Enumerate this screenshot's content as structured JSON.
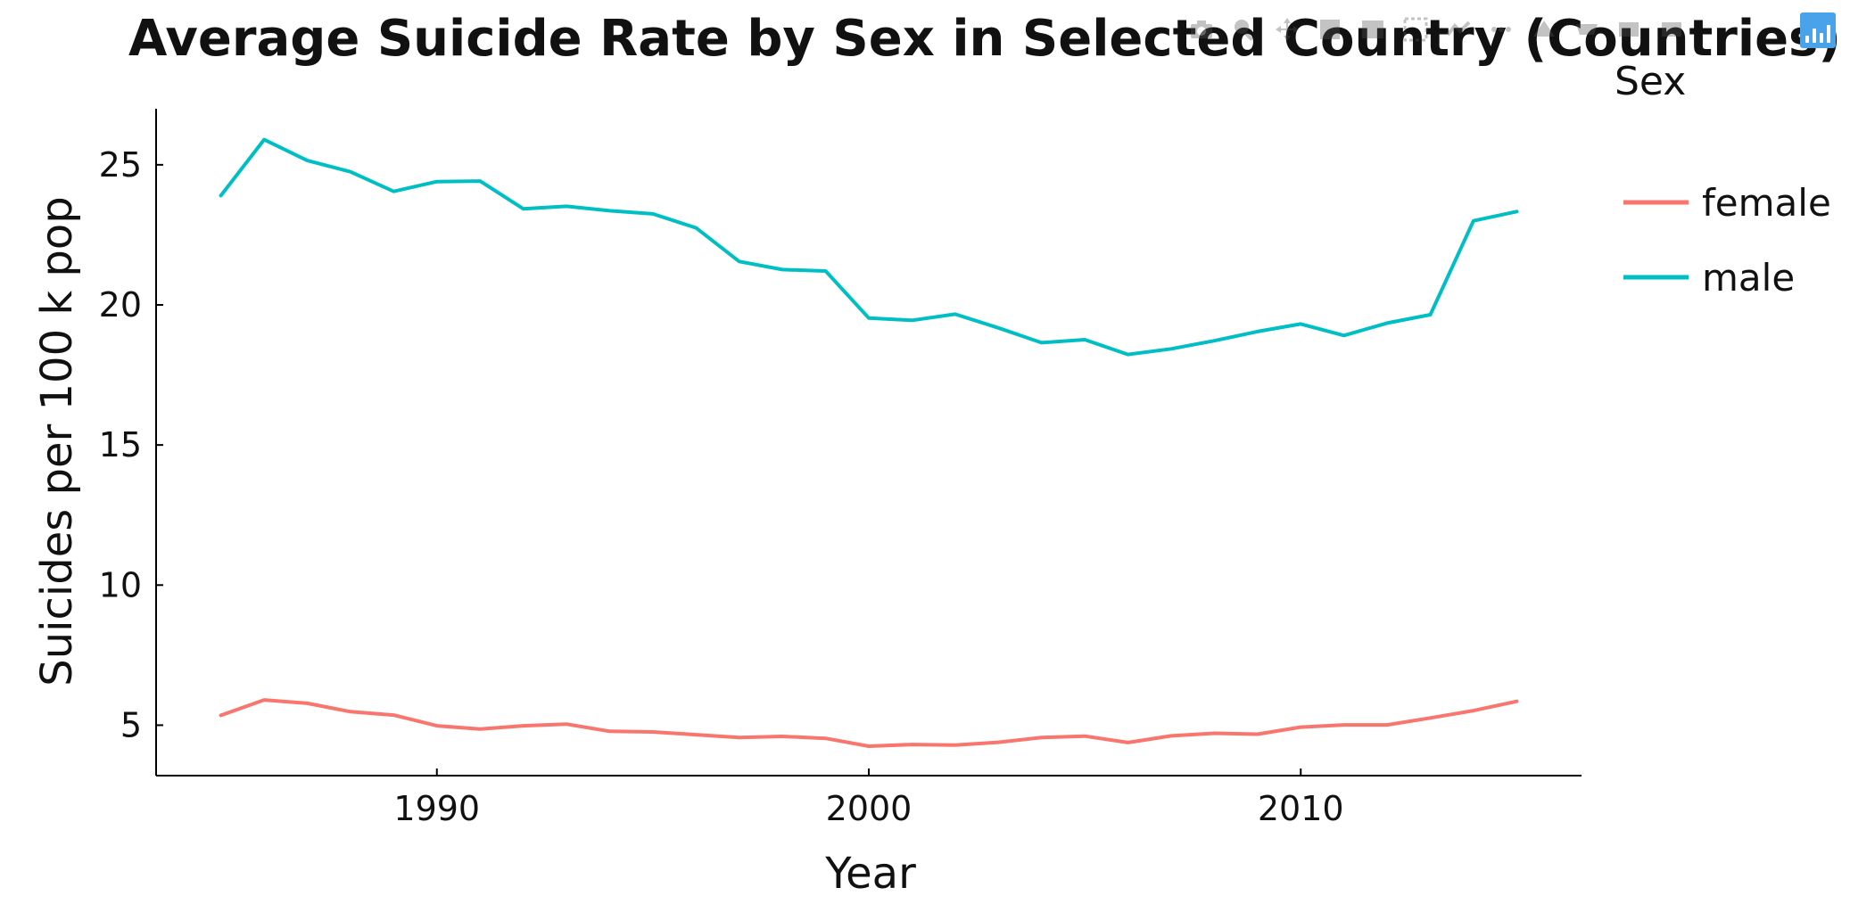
{
  "chart_data": {
    "type": "line",
    "title": "Average Suicide Rate by Sex in Selected Country (Countries)",
    "xlabel": "Year",
    "ylabel": "Suicides per 100 k pop",
    "xlim": [
      1983.5,
      2016.5
    ],
    "ylim": [
      3.2,
      27.0
    ],
    "x_ticks": [
      1990,
      2000,
      2010
    ],
    "y_ticks": [
      5,
      10,
      15,
      20,
      25
    ],
    "grid": false,
    "legend": {
      "title": "Sex",
      "placement": "top-right"
    },
    "x": [
      1985,
      1986,
      1987,
      1988,
      1989,
      1990,
      1991,
      1992,
      1993,
      1994,
      1995,
      1996,
      1997,
      1998,
      1999,
      2000,
      2001,
      2002,
      2003,
      2004,
      2005,
      2006,
      2007,
      2008,
      2009,
      2010,
      2011,
      2012,
      2013,
      2014,
      2015
    ],
    "series": [
      {
        "name": "female",
        "color": "#f8766d",
        "values": [
          5.35,
          5.9,
          5.78,
          5.48,
          5.36,
          4.98,
          4.86,
          4.98,
          5.04,
          4.78,
          4.76,
          4.66,
          4.56,
          4.6,
          4.53,
          4.25,
          4.31,
          4.29,
          4.39,
          4.56,
          4.61,
          4.38,
          4.62,
          4.71,
          4.68,
          4.93,
          5.01,
          5.01,
          5.26,
          5.52,
          5.85
        ]
      },
      {
        "name": "male",
        "color": "#00bfc4",
        "values": [
          23.9,
          25.9,
          25.15,
          24.75,
          24.05,
          24.4,
          24.42,
          23.43,
          23.52,
          23.36,
          23.25,
          22.75,
          21.55,
          21.26,
          21.21,
          19.53,
          19.45,
          19.67,
          19.18,
          18.65,
          18.76,
          18.23,
          18.43,
          18.72,
          19.05,
          19.32,
          18.91,
          19.35,
          19.65,
          23.0,
          23.33
        ]
      }
    ]
  },
  "modebar": {
    "icons": [
      "camera-icon",
      "zoom-icon",
      "pan-icon",
      "box-select-icon",
      "lasso-select-icon",
      "zoom-in-icon",
      "zoom-out-icon",
      "autoscale-icon",
      "reset-axes-icon",
      "spike-lines-icon",
      "hover-closest-icon",
      "hover-compare-icon"
    ],
    "logo": "plotly-logo-icon"
  }
}
